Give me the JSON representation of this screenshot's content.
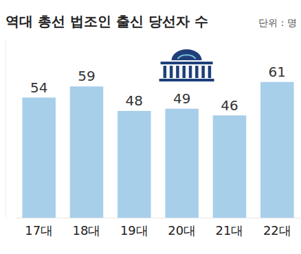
{
  "chart_data": {
    "type": "bar",
    "title": "역대 총선 법조인 출신 당선자 수",
    "subtitle": "단위 : 명",
    "categories": [
      "17대",
      "18대",
      "19대",
      "20대",
      "21대",
      "22대"
    ],
    "values": [
      54,
      59,
      48,
      49,
      46,
      61
    ],
    "color": "#a8cfea",
    "ylim": [
      0,
      80
    ],
    "grid": false,
    "data_labels": true,
    "tick_labels": "x"
  }
}
